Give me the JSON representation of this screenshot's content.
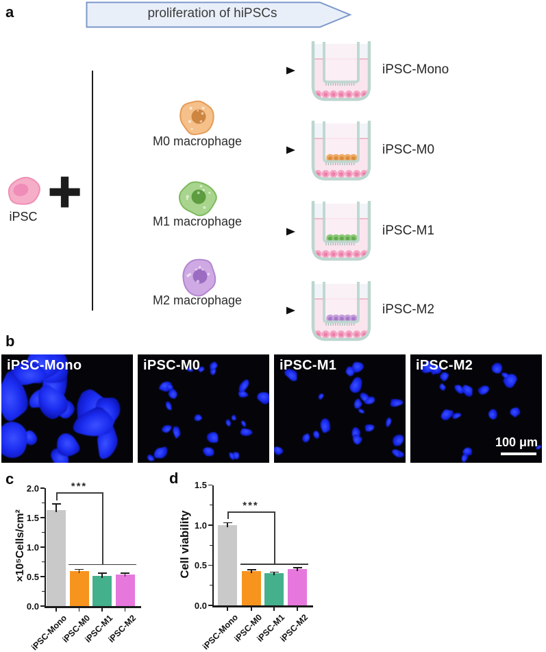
{
  "panel_a": {
    "label": "a",
    "banner": {
      "text": "proliferation of hiPSCs",
      "fill": "#e9eff9",
      "border": "#7b97c9",
      "text_color": "#3a3a3a"
    },
    "ipsc": {
      "label": "iPSC",
      "body": "#f6adc8",
      "outline": "#ee8fb4",
      "nucleus": "#f08cb8"
    },
    "plus_sign": "+",
    "rows": [
      {
        "result": "iPSC-Mono"
      },
      {
        "result": "iPSC-M0",
        "macrophage_label": "M0 macrophage",
        "macrophage_colors": {
          "body": "#f5c08a",
          "outline": "#e69a55",
          "nucleus": "#cd8540"
        },
        "insert_cell_colors": {
          "fill": "#efab66",
          "inner": "#d98c3f"
        }
      },
      {
        "result": "iPSC-M1",
        "macrophage_label": "M1 macrophage",
        "macrophage_colors": {
          "body": "#a8d48d",
          "outline": "#7cba5e",
          "nucleus": "#5d9c3f"
        },
        "insert_cell_colors": {
          "fill": "#8cc979",
          "inner": "#64a850"
        }
      },
      {
        "result": "iPSC-M2",
        "macrophage_label": "M2 macrophage",
        "macrophage_colors": {
          "body": "#cfa9e3",
          "outline": "#b186cf",
          "nucleus": "#9c6cc2"
        },
        "insert_cell_colors": {
          "fill": "#c5a0dc",
          "inner": "#a678c6"
        }
      }
    ],
    "transwell_colors": {
      "vessel": "#bdd6cf",
      "interior": "#f0f4f8",
      "liquid": "#fae5ee",
      "liquid_line": "#e79cb1",
      "insert_fill": "#fdf0f6",
      "membrane": "#9db7b0",
      "well_cell": "#f4a6c4",
      "well_cell_inner": "#eb7fab"
    }
  },
  "panel_b": {
    "label": "b",
    "nucleus_color": "#1b2cf0",
    "scale_bar_label": "100 μm",
    "images": [
      {
        "label": "iPSC-Mono",
        "nuclei_count": 18,
        "nuclei_size": "large",
        "seed": 11
      },
      {
        "label": "iPSC-M0",
        "nuclei_count": 24,
        "nuclei_size": "small",
        "seed": 23
      },
      {
        "label": "iPSC-M1",
        "nuclei_count": 21,
        "nuclei_size": "small",
        "seed": 37
      },
      {
        "label": "iPSC-M2",
        "nuclei_count": 19,
        "nuclei_size": "small",
        "seed": 53
      }
    ]
  },
  "chart_data": [
    {
      "type": "bar",
      "panel_label": "c",
      "ylabel": "×10⁵Cells/cm²",
      "categories": [
        "iPSC-Mono",
        "iPSC-M0",
        "iPSC-M1",
        "iPSC-M2"
      ],
      "values": [
        1.63,
        0.59,
        0.51,
        0.53
      ],
      "errors": [
        0.1,
        0.03,
        0.045,
        0.03
      ],
      "bar_colors": [
        "#c9c9c9",
        "#f7941e",
        "#45b08c",
        "#e678dd"
      ],
      "ylim": [
        0,
        2.0
      ],
      "ytick_values": [
        0,
        0.5,
        1.0,
        1.5,
        2.0
      ],
      "ytick_labels": [
        "0.0",
        "0.5",
        "1.0",
        "1.5",
        "2.0"
      ],
      "minor_tick_step": 0.25,
      "grid": false,
      "significance": {
        "label": "***",
        "bracket_top_value": 1.93,
        "group_line_value": 0.71
      }
    },
    {
      "type": "bar",
      "panel_label": "d",
      "ylabel": "Cell viability",
      "categories": [
        "iPSC-Mono",
        "iPSC-M0",
        "iPSC-M1",
        "iPSC-M2"
      ],
      "values": [
        1.0,
        0.43,
        0.4,
        0.45
      ],
      "errors": [
        0.03,
        0.012,
        0.015,
        0.018
      ],
      "bar_colors": [
        "#c9c9c9",
        "#f7941e",
        "#45b08c",
        "#e678dd"
      ],
      "ylim": [
        0,
        1.5
      ],
      "ytick_values": [
        0,
        0.5,
        1.0,
        1.5
      ],
      "ytick_labels": [
        "0.0",
        "0.5",
        "1.0",
        "1.5"
      ],
      "minor_tick_step": 0.25,
      "grid": false,
      "significance": {
        "label": "***",
        "bracket_top_value": 1.17,
        "group_line_value": 0.52
      }
    }
  ]
}
